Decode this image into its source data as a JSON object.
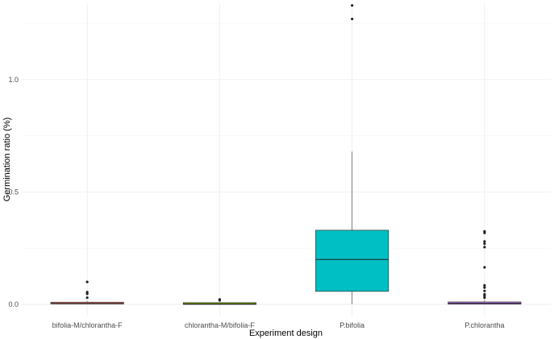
{
  "chart_data": {
    "type": "boxplot",
    "title": "",
    "xlabel": "Experiment design",
    "ylabel": "Germination ratio (%)",
    "ylim": [
      -0.05,
      1.34
    ],
    "yticks": [
      0.0,
      0.5,
      1.0
    ],
    "ytick_labels": [
      "0.0",
      "0.5",
      "1.0"
    ],
    "grid": true,
    "legend": "none",
    "categories": [
      "bifolia-M/chlorantha-F",
      "chlorantha-M/bifolia-F",
      "P.bifolia",
      "P.chlorantha"
    ],
    "boxes": [
      {
        "category": "bifolia-M/chlorantha-F",
        "color": "#F8766D",
        "min": 0.0,
        "q1": 0.002,
        "median": 0.004,
        "q3": 0.01,
        "max": 0.016,
        "outliers": [
          0.1,
          0.055,
          0.047,
          0.03
        ]
      },
      {
        "category": "chlorantha-M/bifolia-F",
        "color": "#7CAE00",
        "min": 0.0,
        "q1": 0.0,
        "median": 0.002,
        "q3": 0.005,
        "max": 0.008,
        "outliers": [
          0.022,
          0.018
        ]
      },
      {
        "category": "P.bifolia",
        "color": "#00BFC4",
        "min": 0.0,
        "q1": 0.058,
        "median": 0.2,
        "q3": 0.33,
        "max": 0.68,
        "outliers": [
          1.33,
          1.27
        ]
      },
      {
        "category": "P.chlorantha",
        "color": "#C77CFF",
        "min": 0.0,
        "q1": 0.001,
        "median": 0.005,
        "q3": 0.011,
        "max": 0.02,
        "outliers": [
          0.325,
          0.318,
          0.28,
          0.27,
          0.255,
          0.165,
          0.085,
          0.075,
          0.06,
          0.045,
          0.038,
          0.03
        ]
      }
    ]
  }
}
